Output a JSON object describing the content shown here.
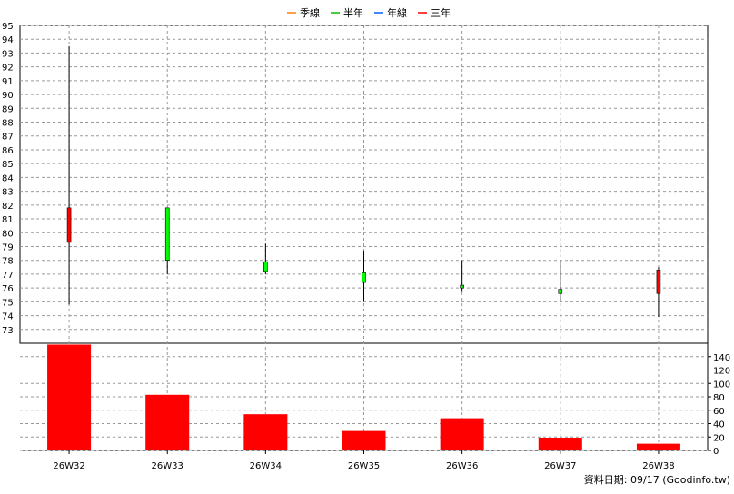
{
  "legend": [
    {
      "label": "季線",
      "color": "#ff8000"
    },
    {
      "label": "半年",
      "color": "#00c000"
    },
    {
      "label": "年線",
      "color": "#0060ff"
    },
    {
      "label": "三年",
      "color": "#ff0000"
    }
  ],
  "footer": {
    "text": "資料日期: 09/17  (Goodinfo.tw)"
  },
  "colors": {
    "up": "#ff0000",
    "down": "#00ff00",
    "volume": "#ff0000",
    "grid": "#999999"
  },
  "chart_data": [
    {
      "type": "candlestick",
      "title": "",
      "categories": [
        "26W32",
        "26W33",
        "26W34",
        "26W35",
        "26W36",
        "26W37",
        "26W38"
      ],
      "series": [
        {
          "open": 79.3,
          "high": 93.5,
          "low": 74.8,
          "close": 81.8
        },
        {
          "open": 81.8,
          "high": 81.8,
          "low": 77.0,
          "close": 78.0
        },
        {
          "open": 77.9,
          "high": 79.2,
          "low": 77.0,
          "close": 77.2
        },
        {
          "open": 77.1,
          "high": 78.7,
          "low": 75.0,
          "close": 76.4
        },
        {
          "open": 76.2,
          "high": 78.0,
          "low": 75.7,
          "close": 76.0
        },
        {
          "open": 75.9,
          "high": 78.0,
          "low": 75.0,
          "close": 75.6
        },
        {
          "open": 75.6,
          "high": 77.5,
          "low": 73.9,
          "close": 77.3
        }
      ],
      "y_ticks": [
        "73",
        "74",
        "75",
        "76",
        "77",
        "78",
        "79",
        "80",
        "81",
        "82",
        "83",
        "84",
        "85",
        "86",
        "87",
        "88",
        "89",
        "90",
        "91",
        "92",
        "93",
        "94",
        "95"
      ],
      "ylim": [
        72,
        95
      ],
      "grid": true,
      "legend_placement": "top-center"
    },
    {
      "type": "bar",
      "title": "",
      "categories": [
        "26W32",
        "26W33",
        "26W34",
        "26W35",
        "26W36",
        "26W37",
        "26W38"
      ],
      "values": [
        158,
        83,
        54,
        29,
        48,
        19,
        10
      ],
      "y_ticks": [
        "0",
        "20",
        "40",
        "60",
        "80",
        "100",
        "120",
        "140"
      ],
      "ylim": [
        0,
        160
      ],
      "grid": true
    }
  ]
}
